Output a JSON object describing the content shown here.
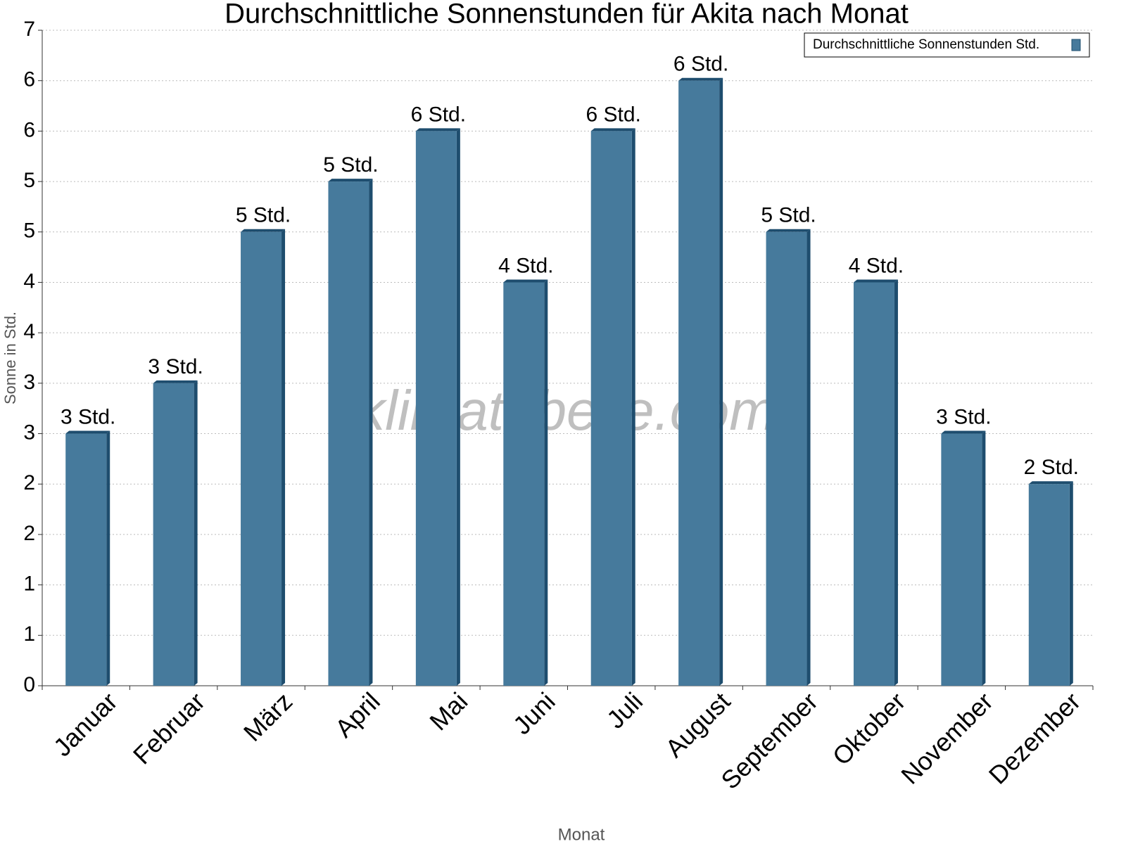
{
  "chart_data": {
    "type": "bar",
    "title": "Durchschnittliche Sonnenstunden für Akita nach Monat",
    "x_label": "Monat",
    "y_label": "Sonne in Std.",
    "watermark": "klimatabelle.com",
    "categories": [
      "Januar",
      "Februar",
      "März",
      "April",
      "Mai",
      "Juni",
      "Juli",
      "August",
      "September",
      "Oktober",
      "November",
      "Dezember"
    ],
    "series": [
      {
        "name": "Durchschnittliche Sonnenstunden Std.",
        "color": "#467a9c",
        "values": [
          2.5,
          3,
          4.5,
          5,
          5.5,
          4,
          5.5,
          6,
          4.5,
          4,
          2.5,
          2
        ],
        "value_labels": [
          "3 Std.",
          "3 Std.",
          "5 Std.",
          "5 Std.",
          "6 Std.",
          "4 Std.",
          "6 Std.",
          "6 Std.",
          "5 Std.",
          "4 Std.",
          "3 Std.",
          "2 Std."
        ]
      }
    ],
    "ylim": [
      0,
      6.5
    ],
    "yticks": [
      0,
      {
        "value": 0.5,
        "label": "1"
      },
      1,
      {
        "value": 1.5,
        "label": "2"
      },
      2,
      {
        "value": 2.5,
        "label": "3"
      },
      3,
      {
        "value": 3.5,
        "label": "4"
      },
      4,
      {
        "value": 4.5,
        "label": "5"
      },
      5,
      {
        "value": 5.5,
        "label": "6"
      },
      6,
      {
        "value": 6.5,
        "label": "7"
      }
    ],
    "grid": true,
    "legend": "top-right"
  }
}
